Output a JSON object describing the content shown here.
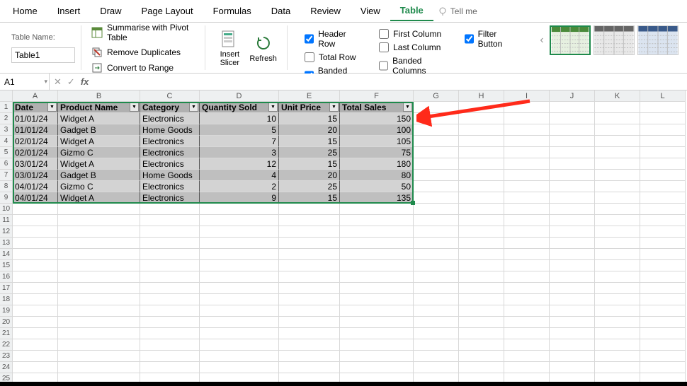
{
  "tabs": [
    "Home",
    "Insert",
    "Draw",
    "Page Layout",
    "Formulas",
    "Data",
    "Review",
    "View",
    "Table"
  ],
  "active_tab": "Table",
  "tellme": "Tell me",
  "table_name_label": "Table Name:",
  "table_name": "Table1",
  "tools": {
    "pivot": "Summarise with Pivot Table",
    "dedupe": "Remove Duplicates",
    "convert": "Convert to Range",
    "slicer": "Insert\nSlicer",
    "refresh": "Refresh"
  },
  "options": {
    "header_row": {
      "label": "Header Row",
      "checked": true
    },
    "total_row": {
      "label": "Total Row",
      "checked": false
    },
    "banded_rows": {
      "label": "Banded Rows",
      "checked": true
    },
    "first_col": {
      "label": "First Column",
      "checked": false
    },
    "last_col": {
      "label": "Last Column",
      "checked": false
    },
    "banded_cols": {
      "label": "Banded Columns",
      "checked": false
    },
    "filter_btn": {
      "label": "Filter Button",
      "checked": true
    }
  },
  "namebox": "A1",
  "columns_letters": [
    "A",
    "B",
    "C",
    "D",
    "E",
    "F",
    "G",
    "H",
    "I",
    "J",
    "K",
    "L"
  ],
  "row_count": 26,
  "table": {
    "headers": [
      "Date",
      "Product Name",
      "Category",
      "Quantity Sold",
      "Unit Price",
      "Total Sales"
    ],
    "numeric_cols": [
      3,
      4,
      5
    ],
    "rows": [
      [
        "01/01/24",
        "Widget A",
        "Electronics",
        "10",
        "15",
        "150"
      ],
      [
        "01/01/24",
        "Gadget B",
        "Home Goods",
        "5",
        "20",
        "100"
      ],
      [
        "02/01/24",
        "Widget A",
        "Electronics",
        "7",
        "15",
        "105"
      ],
      [
        "02/01/24",
        "Gizmo C",
        "Electronics",
        "3",
        "25",
        "75"
      ],
      [
        "03/01/24",
        "Widget A",
        "Electronics",
        "12",
        "15",
        "180"
      ],
      [
        "03/01/24",
        "Gadget B",
        "Home Goods",
        "4",
        "20",
        "80"
      ],
      [
        "04/01/24",
        "Gizmo C",
        "Electronics",
        "2",
        "25",
        "50"
      ],
      [
        "04/01/24",
        "Widget A",
        "Electronics",
        "9",
        "15",
        "135"
      ]
    ],
    "band_colors": [
      "#d3d3d3",
      "#bfbfbf"
    ],
    "header_bg": "#b0b0b0",
    "border_color": "#1f8a4c"
  },
  "styles_palette": [
    {
      "hdr": "#4a8a3a",
      "body": "#e6f0e0"
    },
    {
      "hdr": "#666666",
      "body": "#e8e8e8"
    },
    {
      "hdr": "#3a5a8a",
      "body": "#dbe4f0"
    }
  ],
  "annotation": {
    "arrow_color": "#ff2a1a"
  }
}
